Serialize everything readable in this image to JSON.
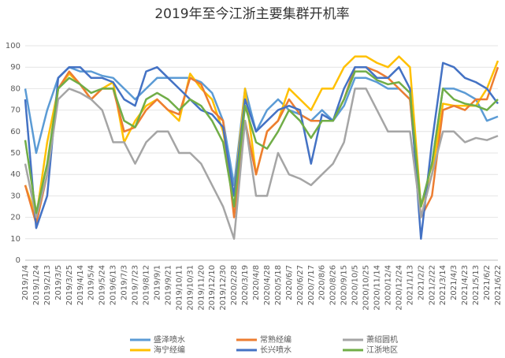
{
  "chart_data": {
    "type": "line",
    "title": "2019年至今江浙主要集群开机率",
    "categories": [
      "2019/1/4",
      "2019/1/24",
      "2019/2/13",
      "2019/3/5",
      "2019/3/25",
      "2019/4/14",
      "2019/5/4",
      "2019/5/24",
      "2019/6/13",
      "2019/7/3",
      "2019/7/23",
      "2019/8/12",
      "2019/9/1",
      "2019/9/21",
      "2019/10/11",
      "2019/10/31",
      "2019/11/20",
      "2019/12/10",
      "2019/12/30",
      "2020/2/28",
      "2020/3/19",
      "2020/4/8",
      "2020/4/28",
      "2020/5/18",
      "2020/6/7",
      "2020/6/27",
      "2020/7/17",
      "2020/8/6",
      "2020/8/26",
      "2020/9/15",
      "2020/10/5",
      "2020/10/25",
      "2020/11/14",
      "2020/12/4",
      "2020/12/24",
      "2021/1/13",
      "2021/2/2",
      "2021/2/22",
      "2021/3/14",
      "2021/4/3",
      "2021/4/23",
      "2021/5/13",
      "2021/6/2",
      "2021/6/22"
    ],
    "series": [
      {
        "name": "盛泽喷水",
        "color": "#5b9bd5",
        "values": [
          80,
          50,
          70,
          85,
          90,
          88,
          88,
          86,
          85,
          80,
          75,
          80,
          85,
          85,
          85,
          85,
          83,
          78,
          65,
          35,
          80,
          60,
          70,
          75,
          70,
          68,
          65,
          70,
          65,
          72,
          85,
          85,
          83,
          80,
          80,
          75,
          25,
          45,
          80,
          80,
          78,
          75,
          65,
          67
        ]
      },
      {
        "name": "海宁经编",
        "color": "#ffc000",
        "values": [
          35,
          20,
          55,
          80,
          87,
          82,
          75,
          80,
          83,
          55,
          65,
          72,
          75,
          70,
          65,
          87,
          80,
          75,
          60,
          30,
          80,
          40,
          60,
          65,
          80,
          75,
          70,
          80,
          80,
          90,
          95,
          95,
          92,
          90,
          95,
          90,
          25,
          40,
          73,
          72,
          72,
          72,
          80,
          93
        ]
      },
      {
        "name": "常熟经编",
        "color": "#ed7d31",
        "values": [
          35,
          17,
          40,
          80,
          88,
          82,
          75,
          80,
          80,
          60,
          62,
          70,
          75,
          70,
          68,
          85,
          82,
          70,
          65,
          20,
          65,
          40,
          60,
          65,
          75,
          68,
          65,
          65,
          65,
          75,
          90,
          90,
          88,
          85,
          80,
          75,
          20,
          30,
          70,
          72,
          70,
          75,
          75,
          90
        ]
      },
      {
        "name": "长兴喷水",
        "color": "#4472c4",
        "values": [
          75,
          15,
          30,
          85,
          90,
          90,
          85,
          85,
          83,
          75,
          72,
          88,
          90,
          85,
          80,
          75,
          70,
          68,
          62,
          30,
          75,
          60,
          65,
          70,
          72,
          70,
          45,
          68,
          65,
          80,
          90,
          90,
          85,
          85,
          90,
          80,
          10,
          55,
          92,
          90,
          85,
          83,
          80,
          73
        ]
      },
      {
        "name": "萧绍圆机",
        "color": "#a5a5a5",
        "values": [
          45,
          20,
          40,
          75,
          80,
          78,
          75,
          70,
          55,
          55,
          45,
          55,
          60,
          60,
          50,
          50,
          45,
          35,
          25,
          10,
          65,
          30,
          30,
          50,
          40,
          38,
          35,
          40,
          45,
          55,
          80,
          80,
          70,
          60,
          60,
          60,
          20,
          40,
          60,
          60,
          55,
          57,
          56,
          58
        ]
      },
      {
        "name": "江浙地区",
        "color": "#70ad47",
        "values": [
          56,
          22,
          45,
          80,
          85,
          82,
          78,
          80,
          80,
          65,
          62,
          75,
          78,
          75,
          70,
          75,
          72,
          65,
          55,
          25,
          72,
          55,
          52,
          60,
          70,
          65,
          57,
          65,
          65,
          75,
          88,
          88,
          84,
          82,
          83,
          78,
          25,
          45,
          80,
          75,
          73,
          72,
          70,
          75
        ]
      }
    ],
    "ylim": [
      0,
      100
    ],
    "yticks": [
      0,
      10,
      20,
      30,
      40,
      50,
      60,
      70,
      80,
      90,
      100
    ],
    "grid": true
  }
}
